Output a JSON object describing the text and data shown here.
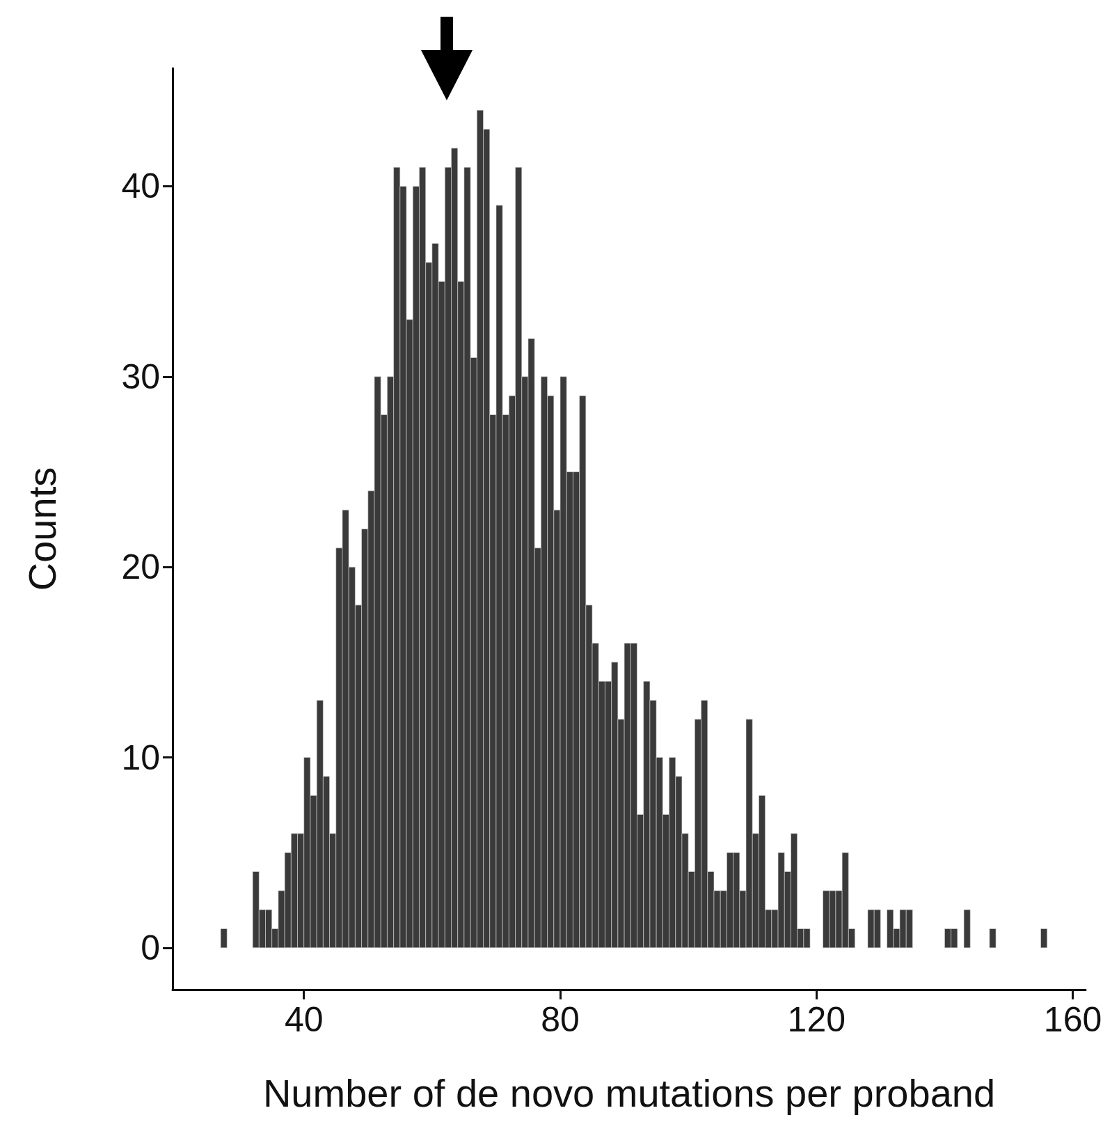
{
  "chart_data": {
    "type": "histogram",
    "xlabel": "Number of de novo mutations per proband",
    "ylabel": "Counts",
    "color": "#3a3a3a",
    "bins": [
      27,
      28,
      29,
      30,
      31,
      32,
      33,
      34,
      35,
      36,
      37,
      38,
      39,
      40,
      41,
      42,
      43,
      44,
      45,
      46,
      47,
      48,
      49,
      50,
      51,
      52,
      53,
      54,
      55,
      56,
      57,
      58,
      59,
      60,
      61,
      62,
      63,
      64,
      65,
      66,
      67,
      68,
      69,
      70,
      71,
      72,
      73,
      74,
      75,
      76,
      77,
      78,
      79,
      80,
      81,
      82,
      83,
      84,
      85,
      86,
      87,
      88,
      89,
      90,
      91,
      92,
      93,
      94,
      95,
      96,
      97,
      98,
      99,
      100,
      101,
      102,
      103,
      104,
      105,
      106,
      107,
      108,
      109,
      110,
      111,
      112,
      113,
      114,
      115,
      116,
      117,
      118,
      119,
      120,
      121,
      122,
      123,
      124,
      125,
      126,
      127,
      128,
      129,
      130,
      131,
      132,
      133,
      134,
      135,
      136,
      137,
      138,
      139,
      140,
      141,
      142,
      143,
      144,
      145,
      146,
      147,
      148,
      149,
      150,
      151,
      152,
      153,
      154,
      155,
      156
    ],
    "values": [
      1,
      0,
      0,
      0,
      0,
      4,
      2,
      2,
      1,
      3,
      5,
      6,
      6,
      10,
      8,
      13,
      9,
      6,
      21,
      23,
      20,
      18,
      22,
      24,
      30,
      28,
      30,
      41,
      40,
      33,
      40,
      41,
      36,
      37,
      35,
      41,
      42,
      35,
      41,
      31,
      44,
      43,
      28,
      39,
      28,
      29,
      41,
      30,
      32,
      21,
      30,
      29,
      23,
      30,
      25,
      25,
      29,
      18,
      16,
      14,
      14,
      15,
      12,
      16,
      16,
      7,
      14,
      13,
      10,
      7,
      10,
      9,
      6,
      4,
      12,
      13,
      4,
      3,
      3,
      5,
      5,
      3,
      12,
      6,
      8,
      2,
      2,
      5,
      4,
      6,
      1,
      1,
      0,
      0,
      3,
      3,
      3,
      5,
      1,
      0,
      0,
      2,
      2,
      0,
      2,
      1,
      2,
      2,
      0,
      0,
      0,
      0,
      0,
      1,
      1,
      0,
      2,
      0,
      0,
      0,
      1,
      0,
      0,
      0,
      0,
      0,
      0,
      0,
      1
    ],
    "xlim": [
      19.5,
      162
    ],
    "ylim": [
      -2.2,
      46.2
    ],
    "xticks": [
      40,
      80,
      120,
      160
    ],
    "yticks": [
      0,
      10,
      20,
      30,
      40
    ],
    "grid": false
  }
}
